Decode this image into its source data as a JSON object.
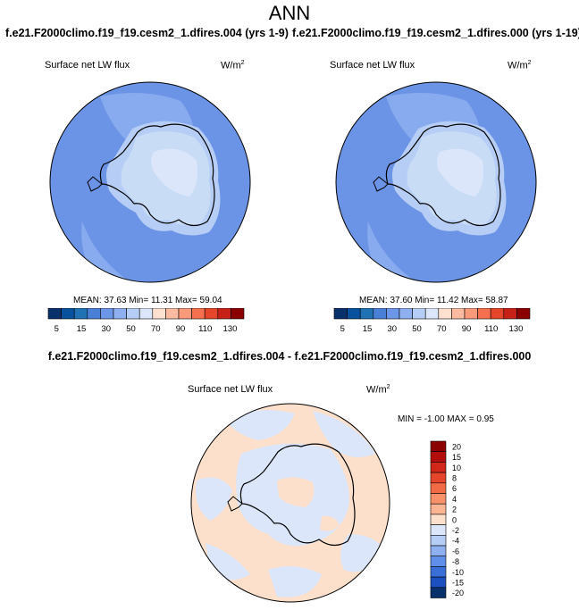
{
  "page_title": "ANN",
  "panels": [
    {
      "case_title": "f.e21.F2000climo.f19_f19.cesm2_1.dfires.004 (yrs 1-9)",
      "field_label": "Surface net LW flux",
      "units_base": "W/m",
      "units_sup": "2",
      "stats_text": "MEAN:  37.63  Min=  11.31  Max=  59.04",
      "colorbar_labels": [
        "5",
        "15",
        "30",
        "50",
        "70",
        "90",
        "110",
        "130"
      ]
    },
    {
      "case_title": "f.e21.F2000climo.f19_f19.cesm2_1.dfires.000 (yrs 1-19)",
      "field_label": "Surface net LW flux",
      "units_base": "W/m",
      "units_sup": "2",
      "stats_text": "MEAN:  37.60  Min=  11.42  Max=  58.87",
      "colorbar_labels": [
        "5",
        "15",
        "30",
        "50",
        "70",
        "90",
        "110",
        "130"
      ]
    }
  ],
  "difference": {
    "title": "f.e21.F2000climo.f19_f19.cesm2_1.dfires.004 - f.e21.F2000climo.f19_f19.cesm2_1.dfires.000",
    "field_label": "Surface net LW flux",
    "units_base": "W/m",
    "units_sup": "2",
    "stats_text": "MIN =  -1.00 MAX =   0.95",
    "colorbar_labels": [
      "20",
      "15",
      "10",
      "8",
      "6",
      "4",
      "2",
      "0",
      "-2",
      "-4",
      "-6",
      "-8",
      "-10",
      "-15",
      "-20"
    ]
  },
  "colors": {
    "abs_scale": [
      "#08306b",
      "#08519c",
      "#2171b5",
      "#4a7fd8",
      "#6c96e8",
      "#8fb0f0",
      "#b6cdf5",
      "#dbe6fa",
      "#fde0d0",
      "#fcbba1",
      "#fb9a7a",
      "#f5704f",
      "#e5452b",
      "#c72117",
      "#8b0000"
    ],
    "diff_scale": [
      "#8b0000",
      "#b30d0d",
      "#d2281b",
      "#e5452b",
      "#f26b47",
      "#f9916a",
      "#fcb593",
      "#fde0cb",
      "#dbe6fa",
      "#b6cdf5",
      "#8fb0f0",
      "#5f8fe8",
      "#3a6fd8",
      "#1c4fbf",
      "#08306b"
    ],
    "ocean_abs": "#6b94e6",
    "land_abs": "#c9dcf6",
    "diff_positive": "#fde0cb",
    "diff_negative": "#dbe6fa"
  }
}
